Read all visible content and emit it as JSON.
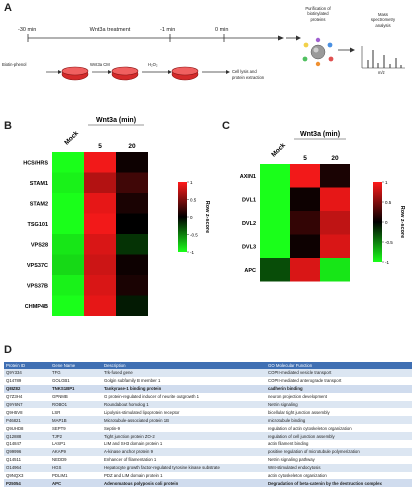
{
  "panels": {
    "a": "A",
    "b": "B",
    "c": "C",
    "d": "D"
  },
  "timeline": {
    "labels": {
      "t30": "-30 min",
      "wnt": "Wnt3a treatment",
      "t1": "-1 min",
      "t0": "0 min"
    },
    "steps": {
      "bp": "Biotin-phenol",
      "cm": "Wnt3a CM",
      "h2o2": "H₂O₂",
      "lysis1": "Cell lysis and",
      "lysis2": "protein extraction"
    },
    "purif": [
      "Purification of",
      "biotinylated",
      "proteins"
    ],
    "mass": [
      "Mass",
      "spectrometry",
      "analysis"
    ],
    "mz": "m/z"
  },
  "heatmap_b": {
    "title": "Wnt3a (min)",
    "columns": [
      "Mock",
      "5",
      "20"
    ],
    "rows": [
      "HCS/HRS",
      "STAM1",
      "STAM2",
      "TSG101",
      "VPS28",
      "VPS37C",
      "VPS37B",
      "CHMP4B"
    ],
    "values": [
      [
        -1.0,
        0.95,
        0.05
      ],
      [
        -0.95,
        0.7,
        0.25
      ],
      [
        -1.0,
        0.9,
        0.1
      ],
      [
        -1.0,
        0.95,
        0.0
      ],
      [
        -0.9,
        0.85,
        -0.2
      ],
      [
        -0.85,
        0.8,
        0.05
      ],
      [
        -0.95,
        0.85,
        0.1
      ],
      [
        -1.0,
        0.9,
        -0.1
      ]
    ],
    "legend_label": "Row z-score",
    "legend_ticks": [
      "1",
      "0.5",
      "0",
      "-0.5",
      "-1"
    ]
  },
  "heatmap_c": {
    "title": "Wnt3a (min)",
    "columns": [
      "Mock",
      "5",
      "20"
    ],
    "rows": [
      "AXIN1",
      "DVL1",
      "DVL2",
      "DVL3",
      "APC"
    ],
    "values": [
      [
        -1.0,
        0.95,
        0.1
      ],
      [
        -1.0,
        0.05,
        0.9
      ],
      [
        -1.0,
        0.2,
        0.75
      ],
      [
        -1.0,
        0.05,
        0.85
      ],
      [
        -0.3,
        0.85,
        -0.9
      ]
    ],
    "legend_label": "Row z-score",
    "legend_ticks": [
      "1",
      "0.5",
      "0",
      "-0.5",
      "-1"
    ]
  },
  "table": {
    "headers": [
      "Protein ID",
      "Gene Name",
      "Description",
      "GO Molecular Function"
    ],
    "rows": [
      [
        "Q9Y334",
        "TFG",
        "Trk-fused gene",
        "COPII-mediated vesicle transport"
      ],
      [
        "Q14789",
        "GOLGB1",
        "Golgin subfamily B member 1",
        "COPII-mediated anterograde transport"
      ],
      [
        "Q8IZ82",
        "TNKS1BP1",
        "Tankyrase-1 binding protein",
        "cadherin binding"
      ],
      [
        "Q7Z3H4",
        "GPNMB",
        "G protein-regulated inducer of neurite outgrowth 1",
        "neuron projection development"
      ],
      [
        "Q9Y6N7",
        "ROBO1",
        "Roundabout homolog 1",
        "Netrin signaling"
      ],
      [
        "Q9H5V8",
        "LSR",
        "Lipolysis-stimulated lipoprotein receptor",
        "bicellular tight junction assembly"
      ],
      [
        "P46821",
        "MAP1B",
        "Microtubule-associated protein 1B",
        "microtubule binding"
      ],
      [
        "Q9UHD8",
        "SEPT9",
        "Septin-9",
        "regulation of actin cytoskeleton organization"
      ],
      [
        "Q12888",
        "TJP2",
        "Tight junction protein ZO-2",
        "regulation of cell junction assembly"
      ],
      [
        "Q14847",
        "LASP1",
        "LIM and SH3 domain protein 1",
        "actin filament binding"
      ],
      [
        "Q99996",
        "AKAP9",
        "A-kinase anchor protein 9",
        "positive regulation of microtubule polymerization"
      ],
      [
        "Q14511",
        "NEDD9",
        "Enhancer of filamentation 1",
        "Netrin signaling pathway"
      ],
      [
        "O14964",
        "HGS",
        "Hepatocyte growth factor-regulated tyrosine kinase substrate",
        "Wnt-stimulated endocytosis"
      ],
      [
        "Q9NQX3",
        "PDLIM1",
        "PDZ and LIM domain protein 1",
        "actin cytoskeleton organization"
      ],
      [
        "P25054",
        "APC",
        "Adenomatous polyposis coli protein",
        "Degradation of beta-catenin by the destruction complex"
      ]
    ]
  },
  "colors": {
    "red": "#ff1a1a",
    "black": "#000000",
    "green": "#1aff1a",
    "table_header": "#3f6fb3",
    "table_row": "#dce6f2"
  }
}
